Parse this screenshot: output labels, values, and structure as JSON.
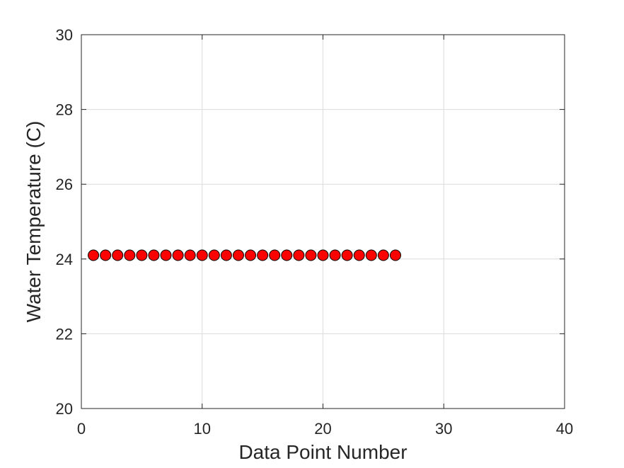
{
  "chart_data": {
    "type": "scatter",
    "title": "",
    "xlabel": "Data Point Number",
    "ylabel": "Water Temperature (C)",
    "xlim": [
      0,
      40
    ],
    "ylim": [
      20,
      30
    ],
    "xticks": [
      0,
      10,
      20,
      30,
      40
    ],
    "yticks": [
      20,
      22,
      24,
      26,
      28,
      30
    ],
    "xtick_labels": [
      "0",
      "10",
      "20",
      "30",
      "40"
    ],
    "ytick_labels": [
      "20",
      "22",
      "24",
      "26",
      "28",
      "30"
    ],
    "grid": true,
    "legend": "none",
    "marker": "circle",
    "marker_color": "#ff0000",
    "marker_edge_color": "#000000",
    "series": [
      {
        "x": [
          1,
          2,
          3,
          4,
          5,
          6,
          7,
          8,
          9,
          10,
          11,
          12,
          13,
          14,
          15,
          16,
          17,
          18,
          19,
          20,
          21,
          22,
          23,
          24,
          25,
          26
        ],
        "y": [
          24.1,
          24.1,
          24.1,
          24.1,
          24.1,
          24.1,
          24.1,
          24.1,
          24.1,
          24.1,
          24.1,
          24.1,
          24.1,
          24.1,
          24.1,
          24.1,
          24.1,
          24.1,
          24.1,
          24.1,
          24.1,
          24.1,
          24.1,
          24.1,
          24.1,
          24.1
        ]
      }
    ]
  }
}
